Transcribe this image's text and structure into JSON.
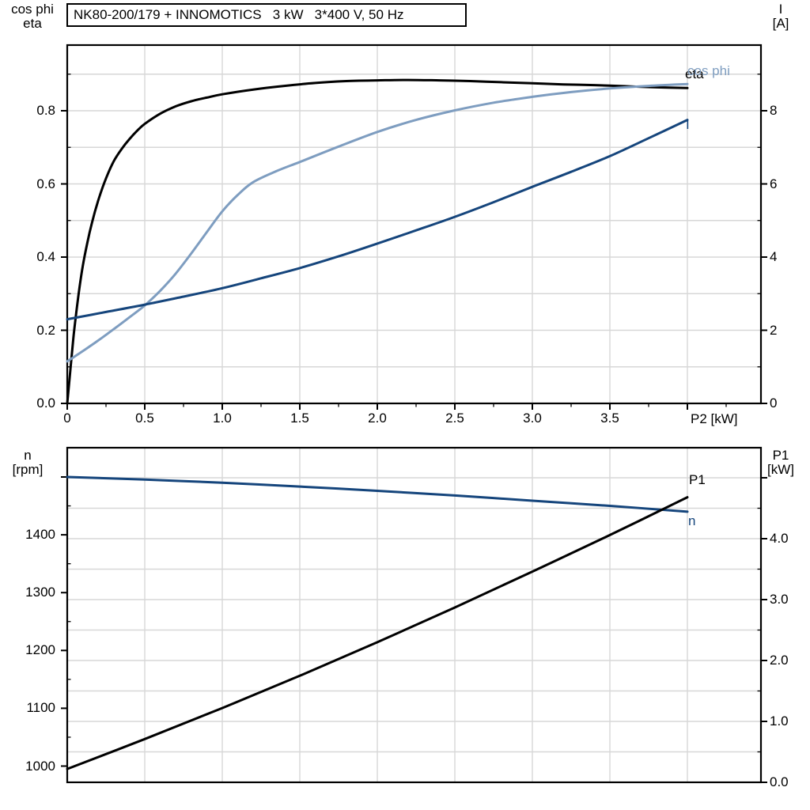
{
  "title": "NK80-200/179 + INNOMOTICS   3 kW   3*400 V, 50 Hz",
  "colors": {
    "black": "#000000",
    "dark_blue": "#15457c",
    "light_blue": "#7e9dc0",
    "grid": "#d7d7d7",
    "axis": "#000000"
  },
  "chart_data": [
    {
      "type": "line",
      "title": "NK80-200/179 + INNOMOTICS   3 kW   3*400 V, 50 Hz",
      "grid": "on",
      "legend": "curve-end labels",
      "x_axis": {
        "label": "P2 [kW]",
        "range": [
          0,
          4.47
        ],
        "major_ticks": [
          0,
          0.5,
          1.0,
          1.5,
          2.0,
          2.5,
          3.0,
          3.5,
          4.0
        ],
        "tick_labels": [
          "0",
          "0.5",
          "1.0",
          "1.5",
          "2.0",
          "2.5",
          "3.0",
          "3.5",
          ""
        ],
        "minor_ticks": [
          0.25,
          0.75,
          1.25,
          1.75,
          2.25,
          2.75,
          3.25,
          3.75,
          4.25
        ],
        "grid_values": [
          0.5,
          1.0,
          1.5,
          2.0,
          2.5,
          3.0,
          3.5,
          4.0
        ]
      },
      "left_axis": {
        "label_lines": [
          "cos phi",
          "eta"
        ],
        "range": [
          0,
          0.98
        ],
        "major_ticks": [
          0.0,
          0.2,
          0.4,
          0.6,
          0.8
        ],
        "tick_labels": [
          "0.0",
          "0.2",
          "0.4",
          "0.6",
          "0.8"
        ],
        "minor_ticks": [
          0.1,
          0.3,
          0.5,
          0.7,
          0.9
        ]
      },
      "right_axis": {
        "label_lines": [
          "I",
          "[A]"
        ],
        "range": [
          0,
          9.8
        ],
        "major_ticks": [
          0,
          2,
          4,
          6,
          8
        ],
        "tick_labels": [
          "0",
          "2",
          "4",
          "6",
          "8"
        ],
        "minor_ticks": [
          1,
          3,
          5,
          7,
          9
        ],
        "grid_values": [
          1,
          2,
          3,
          4,
          5,
          6,
          7,
          8,
          9
        ]
      },
      "series": [
        {
          "name": "eta",
          "label": "eta",
          "color": "black",
          "axis": "L",
          "points": [
            [
              0,
              0
            ],
            [
              0.02,
              0.09
            ],
            [
              0.04,
              0.18
            ],
            [
              0.06,
              0.255
            ],
            [
              0.08,
              0.32
            ],
            [
              0.1,
              0.375
            ],
            [
              0.13,
              0.44
            ],
            [
              0.16,
              0.495
            ],
            [
              0.2,
              0.555
            ],
            [
              0.25,
              0.615
            ],
            [
              0.3,
              0.662
            ],
            [
              0.35,
              0.695
            ],
            [
              0.4,
              0.722
            ],
            [
              0.45,
              0.745
            ],
            [
              0.5,
              0.764
            ],
            [
              0.6,
              0.792
            ],
            [
              0.7,
              0.812
            ],
            [
              0.8,
              0.826
            ],
            [
              0.9,
              0.836
            ],
            [
              1.0,
              0.845
            ],
            [
              1.2,
              0.858
            ],
            [
              1.4,
              0.868
            ],
            [
              1.6,
              0.876
            ],
            [
              1.8,
              0.881
            ],
            [
              2.0,
              0.883
            ],
            [
              2.2,
              0.884
            ],
            [
              2.4,
              0.883
            ],
            [
              2.6,
              0.881
            ],
            [
              2.8,
              0.878
            ],
            [
              3.0,
              0.875
            ],
            [
              3.2,
              0.872
            ],
            [
              3.4,
              0.87
            ],
            [
              3.6,
              0.867
            ],
            [
              3.8,
              0.864
            ],
            [
              4.0,
              0.862
            ]
          ]
        },
        {
          "name": "cos phi",
          "label": "cos phi",
          "color": "light_blue",
          "axis": "L",
          "points": [
            [
              0,
              0.115
            ],
            [
              0.1,
              0.143
            ],
            [
              0.2,
              0.172
            ],
            [
              0.3,
              0.203
            ],
            [
              0.4,
              0.235
            ],
            [
              0.5,
              0.268
            ],
            [
              0.6,
              0.308
            ],
            [
              0.7,
              0.355
            ],
            [
              0.8,
              0.41
            ],
            [
              0.9,
              0.468
            ],
            [
              1.0,
              0.525
            ],
            [
              1.1,
              0.57
            ],
            [
              1.2,
              0.605
            ],
            [
              1.35,
              0.635
            ],
            [
              1.5,
              0.66
            ],
            [
              1.75,
              0.702
            ],
            [
              2.0,
              0.742
            ],
            [
              2.25,
              0.775
            ],
            [
              2.5,
              0.801
            ],
            [
              2.75,
              0.822
            ],
            [
              3.0,
              0.838
            ],
            [
              3.25,
              0.851
            ],
            [
              3.5,
              0.861
            ],
            [
              3.75,
              0.868
            ],
            [
              4.0,
              0.873
            ]
          ]
        },
        {
          "name": "I",
          "label": "I",
          "color": "dark_blue",
          "axis": "R",
          "points": [
            [
              0,
              2.3
            ],
            [
              0.25,
              2.5
            ],
            [
              0.5,
              2.7
            ],
            [
              0.75,
              2.92
            ],
            [
              1.0,
              3.15
            ],
            [
              1.25,
              3.42
            ],
            [
              1.5,
              3.7
            ],
            [
              1.75,
              4.02
            ],
            [
              2.0,
              4.37
            ],
            [
              2.25,
              4.73
            ],
            [
              2.5,
              5.1
            ],
            [
              2.75,
              5.5
            ],
            [
              3.0,
              5.92
            ],
            [
              3.25,
              6.33
            ],
            [
              3.5,
              6.76
            ],
            [
              3.75,
              7.25
            ],
            [
              4.0,
              7.75
            ]
          ]
        }
      ]
    },
    {
      "type": "line",
      "title": "",
      "grid": "on",
      "legend": "curve-end labels",
      "x_axis": {
        "label": "",
        "range": [
          0,
          4.47
        ],
        "major_ticks": [],
        "tick_labels": [],
        "minor_ticks": [],
        "grid_values": [
          0.5,
          1.0,
          1.5,
          2.0,
          2.5,
          3.0,
          3.5,
          4.0
        ]
      },
      "left_axis": {
        "label_lines": [
          "n",
          "[rpm]"
        ],
        "range": [
          971,
          1551
        ],
        "major_ticks": [
          1000,
          1100,
          1200,
          1300,
          1400,
          1500
        ],
        "tick_labels": [
          "1000",
          "1100",
          "1200",
          "1300",
          "1400",
          ""
        ],
        "minor_ticks": [
          1050,
          1150,
          1250,
          1350,
          1450
        ]
      },
      "right_axis": {
        "label_lines": [
          "P1",
          "[kW]"
        ],
        "range": [
          0,
          5.5
        ],
        "major_ticks": [
          0,
          1,
          2,
          3,
          4,
          5
        ],
        "tick_labels": [
          "0.0",
          "1.0",
          "2.0",
          "3.0",
          "4.0",
          ""
        ],
        "minor_ticks": [
          0.5,
          1.5,
          2.5,
          3.5,
          4.5
        ],
        "grid_values": [
          0.5,
          1.0,
          1.5,
          2.0,
          2.5,
          3.0,
          3.5,
          4.0,
          4.5,
          5.0
        ]
      },
      "series": [
        {
          "name": "n",
          "label": "n",
          "color": "dark_blue",
          "axis": "L",
          "points": [
            [
              0,
              1500
            ],
            [
              0.5,
              1495.5
            ],
            [
              1.0,
              1490
            ],
            [
              1.5,
              1483.5
            ],
            [
              2.0,
              1476
            ],
            [
              2.5,
              1468
            ],
            [
              3.0,
              1459
            ],
            [
              3.5,
              1450
            ],
            [
              4.0,
              1440
            ]
          ]
        },
        {
          "name": "P1",
          "label": "P1",
          "color": "black",
          "axis": "R",
          "points": [
            [
              0,
              0.22
            ],
            [
              0.5,
              0.71
            ],
            [
              1.0,
              1.22
            ],
            [
              1.5,
              1.75
            ],
            [
              2.0,
              2.3
            ],
            [
              2.5,
              2.87
            ],
            [
              3.0,
              3.46
            ],
            [
              3.5,
              4.06
            ],
            [
              4.0,
              4.68
            ]
          ]
        }
      ]
    }
  ]
}
